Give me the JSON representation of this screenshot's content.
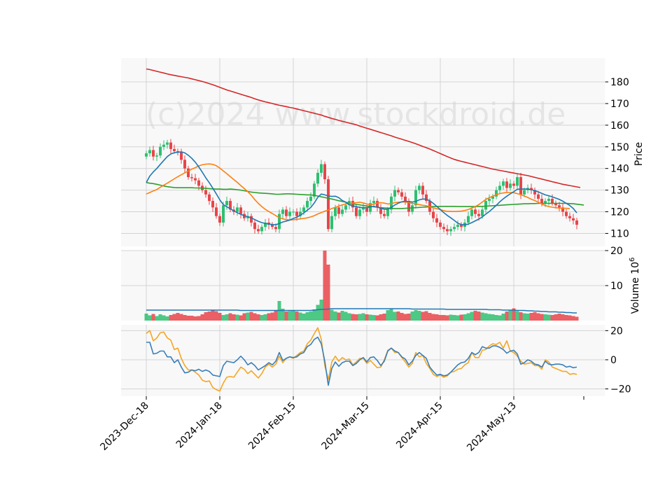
{
  "chart_data": {
    "type": "candlestick",
    "watermark": "(c)2024 www.stockdroid.de",
    "colors": {
      "up": "#2fbf71",
      "down": "#e8454a",
      "ma_fast": "#1f77b4",
      "ma_mid": "#ff7f0e",
      "ma_slow": "#2ca02c",
      "ma_long": "#d62728",
      "volume_ma": "#1f77b4",
      "osc_a": "#3a7fb8",
      "osc_b": "#f5a623",
      "panel_bg": "#f8f8f8",
      "grid": "#d3d3d3"
    },
    "x_ticks": [
      "2023-Dec-18",
      "2024-Jan-18",
      "2024-Feb-15",
      "2024-Mar-15",
      "2024-Apr-15",
      "2024-May-13"
    ],
    "x_tick_index": [
      0,
      21,
      42,
      63,
      84,
      105
    ],
    "price_panel": {
      "ylabel": "Price",
      "ylim": [
        104,
        191
      ],
      "ticks": [
        110,
        120,
        130,
        140,
        150,
        160,
        170,
        180
      ],
      "close": [
        147.0,
        148.5,
        145.5,
        146.0,
        150.0,
        151.0,
        152.0,
        149.0,
        148.0,
        147.5,
        144.0,
        140.0,
        136.0,
        135.5,
        134.5,
        132.0,
        130.0,
        128.0,
        125.0,
        122.0,
        118.0,
        115.0,
        123.0,
        125.0,
        121.0,
        120.0,
        122.0,
        119.0,
        117.0,
        118.0,
        115.0,
        112.0,
        111.0,
        113.0,
        115.0,
        114.0,
        113.0,
        112.0,
        119.0,
        121.0,
        118.0,
        120.0,
        120.0,
        118.0,
        120.0,
        122.0,
        125.0,
        127.0,
        133.0,
        138.0,
        142.0,
        135.0,
        112.0,
        118.0,
        122.0,
        119.0,
        121.0,
        123.0,
        125.0,
        122.0,
        118.0,
        121.0,
        122.0,
        120.0,
        124.0,
        125.0,
        122.0,
        119.0,
        118.0,
        121.0,
        127.0,
        130.0,
        129.0,
        127.0,
        125.0,
        120.0,
        123.0,
        130.0,
        132.0,
        128.0,
        125.0,
        120.0,
        117.0,
        115.0,
        113.0,
        112.0,
        111.0,
        112.0,
        113.0,
        114.0,
        113.0,
        115.0,
        118.0,
        121.0,
        119.0,
        118.0,
        121.0,
        125.0,
        126.0,
        127.0,
        130.0,
        132.0,
        134.0,
        131.0,
        133.0,
        132.0,
        136.0,
        128.0,
        130.0,
        131.0,
        130.0,
        128.0,
        126.0,
        124.0,
        125.0,
        126.0,
        124.0,
        123.0,
        122.0,
        120.0,
        118.0,
        117.0,
        116.0,
        114.0
      ],
      "ma_fast": [
        133.5,
        136.5,
        138.4,
        140.0,
        141.9,
        143.7,
        145.5,
        146.7,
        147.3,
        147.5,
        147.7,
        147.2,
        146.1,
        144.7,
        142.9,
        140.7,
        138.3,
        135.7,
        133.4,
        130.9,
        128.3,
        125.5,
        123.3,
        122.3,
        121.4,
        120.4,
        119.6,
        118.8,
        118.2,
        117.7,
        117.2,
        116.4,
        115.6,
        115.0,
        114.6,
        114.3,
        114.1,
        114.0,
        114.6,
        115.3,
        115.7,
        116.2,
        116.9,
        117.5,
        118.4,
        119.5,
        120.7,
        122.0,
        124.1,
        126.7,
        128.2,
        127.8,
        127.3,
        127.1,
        127.2,
        126.5,
        125.2,
        124.4,
        123.3,
        122.7,
        122.4,
        122.0,
        121.9,
        121.9,
        122.2,
        122.5,
        122.1,
        121.7,
        121.2,
        121.1,
        122.0,
        123.1,
        124.0,
        124.6,
        124.9,
        124.7,
        124.5,
        124.8,
        125.5,
        125.9,
        125.8,
        125.1,
        123.9,
        122.5,
        121.0,
        119.6,
        118.3,
        117.2,
        116.0,
        114.7,
        114.1,
        114.0,
        114.3,
        115.0,
        115.8,
        116.6,
        117.6,
        118.9,
        120.1,
        121.5,
        123.0,
        124.6,
        126.0,
        127.2,
        128.3,
        129.3,
        130.4,
        130.5,
        130.5,
        130.5,
        130.2,
        129.8,
        129.2,
        128.5,
        127.8,
        127.4,
        126.9,
        126.3,
        125.7,
        124.9,
        123.9,
        122.9,
        121.5,
        119.5
      ],
      "ma_mid": [
        128.2,
        128.9,
        129.6,
        130.3,
        131.3,
        132.3,
        133.2,
        134.2,
        135.2,
        136.2,
        137.1,
        138.0,
        138.8,
        139.7,
        140.4,
        141.2,
        141.7,
        142.0,
        142.1,
        141.9,
        141.3,
        140.2,
        138.9,
        137.6,
        136.2,
        134.9,
        133.6,
        132.1,
        130.7,
        129.3,
        127.6,
        125.6,
        123.9,
        122.4,
        121.1,
        120.1,
        119.2,
        118.2,
        117.3,
        116.7,
        116.4,
        116.2,
        116.3,
        116.5,
        116.7,
        116.9,
        117.2,
        117.6,
        118.2,
        119.0,
        119.6,
        120.3,
        120.8,
        121.5,
        122.0,
        122.6,
        123.2,
        123.6,
        123.8,
        124.0,
        124.2,
        124.4,
        124.1,
        123.6,
        123.3,
        123.5,
        124.1,
        124.2,
        124.0,
        123.6,
        123.8,
        124.2,
        124.4,
        124.5,
        124.5,
        124.2,
        123.9,
        123.6,
        123.3,
        123.0,
        122.8,
        122.3,
        121.8,
        121.4,
        121.0,
        120.5,
        120.2,
        120.2,
        120.1,
        120.2,
        120.3,
        120.6,
        121.0,
        121.7,
        122.4,
        123.3,
        124.5,
        125.7,
        126.5,
        127.2,
        127.8,
        128.4,
        128.7,
        128.9,
        128.9,
        128.8,
        128.4,
        127.9,
        127.3,
        126.6,
        125.8,
        125.2,
        124.4,
        123.6,
        122.9,
        122.4,
        122.1,
        121.9,
        121.7,
        121.6,
        121.6,
        121.5
      ],
      "ma_slow": [
        133.5,
        133.2,
        133.0,
        132.7,
        132.3,
        131.9,
        131.6,
        131.4,
        131.2,
        131.1,
        131.1,
        131.1,
        131.1,
        131.1,
        131.0,
        131.0,
        130.9,
        130.8,
        130.7,
        130.6,
        130.5,
        130.5,
        130.4,
        130.4,
        130.5,
        130.4,
        130.2,
        130.0,
        129.7,
        129.4,
        129.1,
        128.9,
        128.7,
        128.6,
        128.5,
        128.4,
        128.3,
        128.1,
        128.1,
        128.2,
        128.3,
        128.3,
        128.2,
        128.1,
        128.0,
        127.9,
        127.8,
        127.8,
        127.6,
        127.3,
        126.9,
        126.6,
        126.2,
        125.9,
        125.5,
        125.1,
        124.8,
        124.4,
        124.0,
        123.7,
        123.4,
        123.2,
        122.9,
        122.7,
        122.5,
        122.3,
        122.1,
        121.9,
        121.8,
        121.7,
        121.6,
        121.5,
        121.5,
        121.5,
        121.6,
        121.7,
        121.8,
        121.9,
        122.0,
        122.1,
        122.2,
        122.3,
        122.4,
        122.4,
        122.5,
        122.5,
        122.5,
        122.5,
        122.5,
        122.4,
        122.4,
        122.4,
        122.4,
        122.4,
        122.4,
        122.5,
        122.5,
        122.6,
        122.7,
        122.8,
        122.9,
        123.0,
        123.1,
        123.2,
        123.3,
        123.4,
        123.5,
        123.6,
        123.7,
        123.7,
        123.8,
        123.8,
        123.9,
        123.9,
        123.9,
        123.9,
        123.9,
        123.9,
        123.9,
        123.9,
        123.9,
        123.8,
        123.7,
        123.5,
        123.3,
        123.1
      ],
      "ma_long": [
        186.0,
        185.7,
        185.3,
        184.9,
        184.5,
        184.1,
        183.7,
        183.3,
        183.0,
        182.7,
        182.4,
        182.1,
        181.8,
        181.4,
        181.0,
        180.6,
        180.2,
        179.7,
        179.2,
        178.7,
        178.1,
        177.5,
        176.9,
        176.3,
        175.8,
        175.3,
        174.8,
        174.3,
        173.8,
        173.3,
        172.8,
        172.2,
        171.7,
        171.2,
        170.8,
        170.4,
        170.0,
        169.6,
        169.2,
        168.9,
        168.6,
        168.2,
        167.9,
        167.5,
        167.1,
        166.7,
        166.3,
        165.9,
        165.5,
        165.1,
        164.7,
        164.1,
        163.6,
        163.1,
        162.7,
        162.2,
        161.8,
        161.4,
        161.0,
        160.6,
        160.2,
        159.6,
        159.1,
        158.6,
        158.1,
        157.6,
        157.1,
        156.6,
        156.1,
        155.6,
        155.1,
        154.5,
        154.0,
        153.5,
        153.0,
        152.5,
        152.0,
        151.4,
        150.8,
        150.2,
        149.6,
        149.0,
        148.3,
        147.6,
        146.9,
        146.2,
        145.5,
        144.8,
        144.2,
        143.7,
        143.3,
        142.9,
        142.5,
        142.1,
        141.7,
        141.3,
        140.9,
        140.5,
        140.1,
        139.7,
        139.4,
        139.1,
        138.8,
        138.5,
        138.2,
        137.9,
        137.6,
        137.3,
        137.0,
        136.7,
        136.3,
        135.9,
        135.5,
        135.1,
        134.7,
        134.3,
        133.9,
        133.5,
        133.1,
        132.7,
        132.4,
        132.1,
        131.8,
        131.5,
        131.2
      ]
    },
    "volume_panel": {
      "ylabel": "Volume  10",
      "ylabel_exponent": "6",
      "ylim": [
        0,
        20
      ],
      "ticks": [
        10,
        20
      ],
      "values": [
        2.0,
        1.5,
        1.9,
        1.3,
        1.8,
        1.5,
        1.2,
        1.6,
        1.9,
        2.2,
        1.9,
        1.6,
        1.4,
        1.4,
        1.2,
        1.3,
        1.8,
        2.4,
        2.6,
        2.9,
        2.7,
        2.2,
        1.6,
        1.8,
        2.1,
        1.8,
        1.7,
        1.5,
        2.1,
        2.3,
        2.5,
        2.1,
        1.8,
        1.6,
        1.8,
        2.1,
        2.3,
        2.8,
        5.6,
        3.4,
        2.6,
        2.7,
        3.0,
        2.6,
        2.3,
        2.0,
        2.4,
        2.6,
        3.2,
        4.5,
        6.0,
        20.0,
        16.0,
        3.1,
        2.6,
        2.3,
        2.8,
        2.5,
        2.1,
        1.9,
        1.8,
        1.9,
        2.1,
        1.8,
        1.7,
        1.6,
        1.5,
        1.8,
        2.0,
        3.0,
        3.3,
        2.5,
        2.6,
        2.2,
        1.9,
        2.0,
        2.6,
        3.0,
        2.8,
        2.5,
        2.7,
        2.2,
        1.9,
        1.8,
        1.6,
        1.6,
        1.5,
        1.7,
        1.6,
        1.5,
        1.7,
        1.8,
        2.1,
        2.5,
        2.8,
        2.6,
        2.3,
        2.1,
        1.9,
        1.8,
        1.6,
        1.5,
        2.0,
        2.6,
        3.1,
        3.5,
        2.7,
        2.4,
        2.1,
        2.0,
        2.2,
        2.4,
        2.1,
        1.9,
        1.8,
        1.7,
        1.6,
        1.8,
        2.0,
        1.8,
        1.6,
        1.5,
        1.3,
        1.1
      ],
      "ma": [
        3.0,
        3.0,
        3.0,
        3.0,
        3.0,
        3.0,
        3.0,
        3.0,
        3.0,
        3.0,
        3.0,
        3.0,
        3.0,
        3.0,
        3.0,
        3.0,
        3.0,
        3.0,
        3.0,
        3.0,
        3.0,
        3.0,
        3.0,
        3.0,
        3.0,
        3.0,
        3.0,
        2.9,
        2.9,
        2.9,
        2.9,
        2.9,
        2.9,
        2.9,
        2.9,
        2.9,
        2.9,
        2.9,
        2.9,
        2.9,
        2.9,
        2.9,
        2.9,
        2.9,
        2.9,
        2.9,
        2.9,
        2.9,
        3.0,
        3.1,
        3.2,
        3.2,
        3.3,
        3.4,
        3.4,
        3.4,
        3.4,
        3.4,
        3.4,
        3.4,
        3.4,
        3.4,
        3.4,
        3.4,
        3.4,
        3.4,
        3.4,
        3.4,
        3.4,
        3.4,
        3.4,
        3.4,
        3.4,
        3.4,
        3.4,
        3.4,
        3.3,
        3.3,
        3.3,
        3.3,
        3.3,
        3.3,
        3.3,
        3.3,
        3.3,
        3.3,
        3.2,
        3.2,
        3.2,
        3.2,
        3.2,
        3.2,
        3.2,
        3.2,
        3.2,
        3.2,
        3.2,
        3.2,
        3.1,
        3.1,
        3.1,
        3.1,
        3.0,
        3.0,
        3.0,
        3.0,
        2.9,
        2.9,
        2.9,
        2.8,
        2.8,
        2.7,
        2.7,
        2.6,
        2.6,
        2.5,
        2.5,
        2.5,
        2.4,
        2.4,
        2.3,
        2.3,
        2.2,
        2.2
      ]
    },
    "osc_panel": {
      "ylim": [
        -25,
        24
      ],
      "ticks": [
        -20,
        0,
        20
      ],
      "series_a": [
        12.0,
        12.0,
        4.0,
        4.5,
        6.0,
        6.0,
        2.0,
        2.0,
        -2.0,
        0.0,
        -5.0,
        -9.0,
        -8.5,
        -7.0,
        -7.5,
        -6.5,
        -8.0,
        -7.0,
        -8.0,
        -10.5,
        -11.0,
        -11.5,
        -4.0,
        -1.0,
        -1.5,
        -2.0,
        0.0,
        2.5,
        0.0,
        -3.5,
        -2.0,
        -4.0,
        -7.0,
        -5.5,
        -4.0,
        -2.0,
        -3.5,
        -1.0,
        5.0,
        -0.5,
        1.0,
        2.0,
        1.5,
        2.0,
        4.0,
        5.0,
        9.0,
        10.5,
        14.0,
        15.5,
        11.0,
        -1.0,
        -17.5,
        -6.0,
        -1.5,
        -4.5,
        -2.0,
        -1.0,
        -1.0,
        -4.0,
        -2.5,
        0.0,
        1.5,
        -1.5,
        1.5,
        2.0,
        -0.5,
        -4.0,
        -1.0,
        6.0,
        8.0,
        6.0,
        5.0,
        2.0,
        0.5,
        -3.5,
        -1.0,
        3.0,
        5.0,
        3.0,
        1.0,
        -5.0,
        -8.0,
        -10.5,
        -10.0,
        -11.0,
        -10.5,
        -8.5,
        -6.0,
        -3.5,
        -2.0,
        -1.5,
        1.0,
        5.0,
        3.5,
        5.0,
        9.0,
        8.0,
        8.0,
        9.5,
        9.5,
        8.5,
        7.0,
        4.5,
        6.0,
        6.5,
        4.0,
        -3.0,
        -2.0,
        0.0,
        -1.0,
        -3.0,
        -3.5,
        -5.0,
        -1.0,
        -3.0,
        -3.5,
        -3.0,
        -3.0,
        -3.5,
        -5.0,
        -4.5,
        -5.5,
        -5.0
      ],
      "series_b": [
        18.0,
        20.0,
        13.0,
        15.0,
        18.5,
        19.0,
        15.0,
        13.5,
        7.0,
        8.0,
        1.0,
        -4.0,
        -7.0,
        -7.0,
        -8.5,
        -10.5,
        -14.0,
        -15.0,
        -14.5,
        -19.0,
        -20.5,
        -21.5,
        -16.0,
        -12.0,
        -11.5,
        -12.0,
        -8.5,
        -5.0,
        -6.5,
        -9.5,
        -7.5,
        -10.0,
        -12.5,
        -9.5,
        -5.0,
        -3.0,
        -5.0,
        -3.0,
        2.5,
        -2.0,
        1.0,
        2.0,
        1.0,
        3.0,
        5.0,
        6.0,
        11.0,
        13.5,
        18.0,
        22.0,
        14.0,
        -4.0,
        -13.5,
        -1.5,
        2.5,
        -1.0,
        1.5,
        0.0,
        0.5,
        -3.5,
        -1.5,
        1.0,
        1.0,
        -2.5,
        -0.5,
        -3.0,
        -5.5,
        -5.0,
        0.0,
        6.5,
        8.0,
        5.0,
        5.0,
        1.5,
        -1.5,
        -5.0,
        -2.5,
        5.0,
        2.0,
        3.0,
        -2.5,
        -6.0,
        -10.0,
        -11.5,
        -10.5,
        -12.0,
        -11.0,
        -8.5,
        -8.0,
        -6.5,
        -6.0,
        -3.5,
        -2.0,
        5.0,
        1.5,
        1.5,
        6.5,
        7.0,
        9.5,
        11.0,
        10.5,
        12.0,
        8.0,
        13.0,
        6.0,
        5.0,
        2.5,
        -1.0,
        -3.0,
        -2.5,
        -2.0,
        -4.0,
        -4.0,
        -6.5,
        0.0,
        -1.5,
        -5.0,
        -6.0,
        -7.0,
        -8.0,
        -8.0,
        -10.0,
        -9.5,
        -10.0
      ]
    }
  }
}
